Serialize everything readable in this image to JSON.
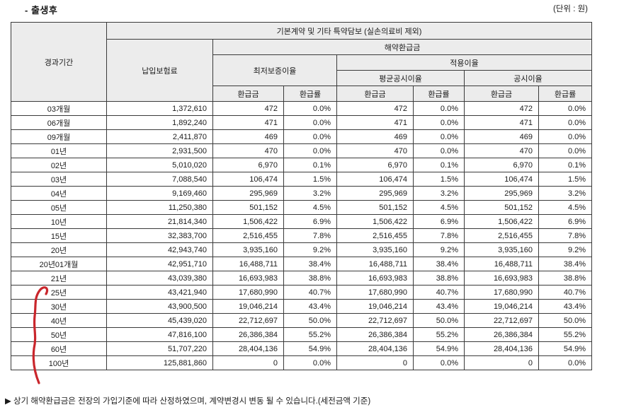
{
  "page": {
    "title": "- 출생후",
    "unit_label": "(단위 : 원)",
    "footnote": "▶ 상기 해약환급금은 전장의 가입기준에 따라 산정하였으며, 계약변경시 변동 될 수 있습니다.(세전금액 기준)"
  },
  "colors": {
    "header_bg": "#ececec",
    "border": "#3a3a3a",
    "annotation_red": "#c9262c"
  },
  "table": {
    "headers": {
      "elapsed_period": "경과기간",
      "paid_premium": "납입보험료",
      "coverage_group": "기본계약 및 기타 특약담보 (실손의료비 제외)",
      "surrender_value": "해약환급금",
      "min_guaranteed_rate": "최저보증이율",
      "applied_rate": "적용이율",
      "avg_published_rate": "평균공시이율",
      "published_rate": "공시이율",
      "refund_amount": "환급금",
      "refund_rate": "환급률"
    },
    "rows": [
      {
        "period": "03개월",
        "premium": "1,372,610",
        "values": [
          "472",
          "0.0%",
          "472",
          "0.0%",
          "472",
          "0.0%"
        ]
      },
      {
        "period": "06개월",
        "premium": "1,892,240",
        "values": [
          "471",
          "0.0%",
          "471",
          "0.0%",
          "471",
          "0.0%"
        ]
      },
      {
        "period": "09개월",
        "premium": "2,411,870",
        "values": [
          "469",
          "0.0%",
          "469",
          "0.0%",
          "469",
          "0.0%"
        ]
      },
      {
        "period": "01년",
        "premium": "2,931,500",
        "values": [
          "470",
          "0.0%",
          "470",
          "0.0%",
          "470",
          "0.0%"
        ]
      },
      {
        "period": "02년",
        "premium": "5,010,020",
        "values": [
          "6,970",
          "0.1%",
          "6,970",
          "0.1%",
          "6,970",
          "0.1%"
        ]
      },
      {
        "period": "03년",
        "premium": "7,088,540",
        "values": [
          "106,474",
          "1.5%",
          "106,474",
          "1.5%",
          "106,474",
          "1.5%"
        ]
      },
      {
        "period": "04년",
        "premium": "9,169,460",
        "values": [
          "295,969",
          "3.2%",
          "295,969",
          "3.2%",
          "295,969",
          "3.2%"
        ]
      },
      {
        "period": "05년",
        "premium": "11,250,380",
        "values": [
          "501,152",
          "4.5%",
          "501,152",
          "4.5%",
          "501,152",
          "4.5%"
        ]
      },
      {
        "period": "10년",
        "premium": "21,814,340",
        "values": [
          "1,506,422",
          "6.9%",
          "1,506,422",
          "6.9%",
          "1,506,422",
          "6.9%"
        ]
      },
      {
        "period": "15년",
        "premium": "32,383,700",
        "values": [
          "2,516,455",
          "7.8%",
          "2,516,455",
          "7.8%",
          "2,516,455",
          "7.8%"
        ]
      },
      {
        "period": "20년",
        "premium": "42,943,740",
        "values": [
          "3,935,160",
          "9.2%",
          "3,935,160",
          "9.2%",
          "3,935,160",
          "9.2%"
        ]
      },
      {
        "period": "20년01개월",
        "premium": "42,951,710",
        "values": [
          "16,488,711",
          "38.4%",
          "16,488,711",
          "38.4%",
          "16,488,711",
          "38.4%"
        ]
      },
      {
        "period": "21년",
        "premium": "43,039,380",
        "values": [
          "16,693,983",
          "38.8%",
          "16,693,983",
          "38.8%",
          "16,693,983",
          "38.8%"
        ]
      },
      {
        "period": "25년",
        "premium": "43,421,940",
        "values": [
          "17,680,990",
          "40.7%",
          "17,680,990",
          "40.7%",
          "17,680,990",
          "40.7%"
        ]
      },
      {
        "period": "30년",
        "premium": "43,900,500",
        "values": [
          "19,046,214",
          "43.4%",
          "19,046,214",
          "43.4%",
          "19,046,214",
          "43.4%"
        ]
      },
      {
        "period": "40년",
        "premium": "45,439,020",
        "values": [
          "22,712,697",
          "50.0%",
          "22,712,697",
          "50.0%",
          "22,712,697",
          "50.0%"
        ]
      },
      {
        "period": "50년",
        "premium": "47,816,100",
        "values": [
          "26,386,384",
          "55.2%",
          "26,386,384",
          "55.2%",
          "26,386,384",
          "55.2%"
        ]
      },
      {
        "period": "60년",
        "premium": "51,707,220",
        "values": [
          "28,404,136",
          "54.9%",
          "28,404,136",
          "54.9%",
          "28,404,136",
          "54.9%"
        ]
      },
      {
        "period": "100년",
        "premium": "125,881,860",
        "values": [
          "0",
          "0.0%",
          "0",
          "0.0%",
          "0",
          "0.0%"
        ]
      }
    ]
  }
}
